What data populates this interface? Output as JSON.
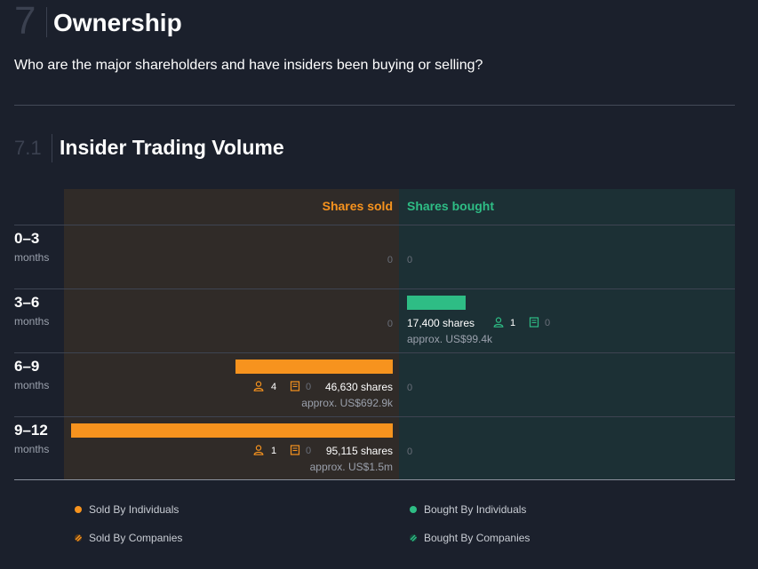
{
  "section": {
    "number": "7",
    "title": "Ownership",
    "question": "Who are the major shareholders and have insiders been buying or selling?"
  },
  "subsection": {
    "number": "7.1",
    "title": "Insider Trading Volume"
  },
  "colors": {
    "sold": "#f7931e",
    "bought": "#2ebd85",
    "sold_bg": "#302b28",
    "bought_bg": "#1c3035"
  },
  "chart_data": {
    "type": "bar",
    "title": "Insider Trading Volume",
    "headers": {
      "sold": "Shares sold",
      "bought": "Shares bought"
    },
    "categories": [
      "0–3",
      "3–6",
      "6–9",
      "9–12"
    ],
    "category_unit": "months",
    "series": [
      {
        "name": "Shares sold",
        "values": [
          0,
          0,
          46630,
          95115
        ]
      },
      {
        "name": "Shares bought",
        "values": [
          0,
          17400,
          0,
          0
        ]
      }
    ],
    "zero_label": "0",
    "rows": [
      {
        "period": "0–3",
        "unit": "months"
      },
      {
        "period": "3–6",
        "unit": "months",
        "bought": {
          "shares_text": "17,400 shares",
          "approx_text": "approx. US$99.4k",
          "individuals": "1",
          "companies": "0"
        }
      },
      {
        "period": "6–9",
        "unit": "months",
        "sold": {
          "shares_text": "46,630 shares",
          "approx_text": "approx. US$692.9k",
          "individuals": "4",
          "companies": "0"
        }
      },
      {
        "period": "9–12",
        "unit": "months",
        "sold": {
          "shares_text": "95,115 shares",
          "approx_text": "approx. US$1.5m",
          "individuals": "1",
          "companies": "0"
        }
      }
    ],
    "legend": [
      {
        "label": "Sold By Individuals",
        "color": "#f7931e",
        "style": "dot"
      },
      {
        "label": "Bought By Individuals",
        "color": "#2ebd85",
        "style": "dot"
      },
      {
        "label": "Sold By Companies",
        "color": "#f7931e",
        "style": "hatched"
      },
      {
        "label": "Bought By Companies",
        "color": "#2ebd85",
        "style": "hatched"
      }
    ]
  }
}
